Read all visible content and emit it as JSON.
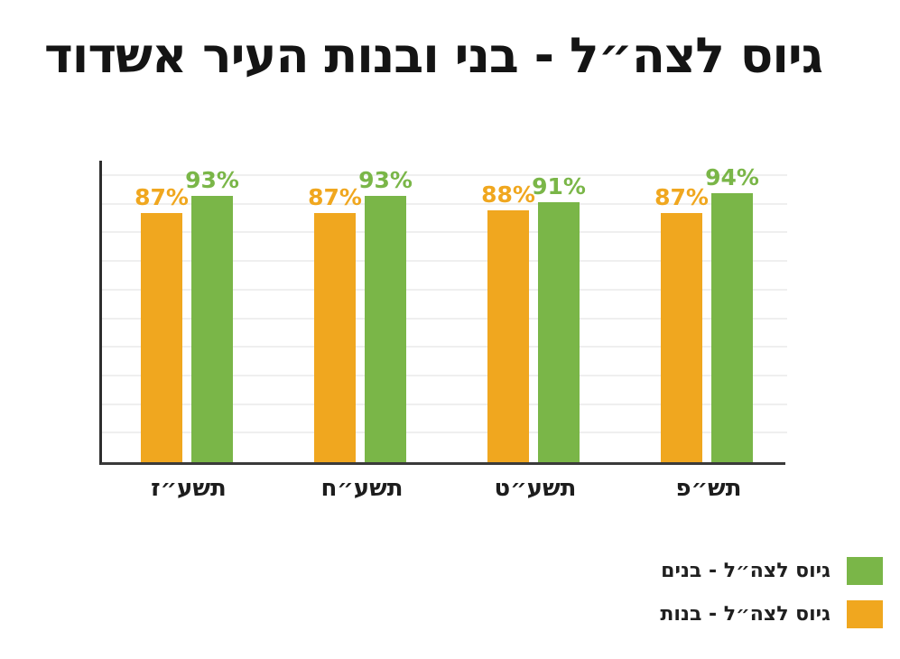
{
  "title": "גיוס לצה״ל - בני ובנות העיר אשדוד",
  "chart_data": {
    "type": "bar",
    "title": "גיוס לצה״ל - בני ובנות העיר אשדוד",
    "categories": [
      "תשע״ז",
      "תשע״ח",
      "תשע״ט",
      "תש״פ"
    ],
    "series": [
      {
        "name": "גיוס לצה״ל - בנים",
        "color": "#7ab648",
        "values": [
          93,
          93,
          91,
          94
        ]
      },
      {
        "name": "גיוס לצה״ל - בנות",
        "color": "#f0a71f",
        "values": [
          87,
          87,
          88,
          87
        ]
      }
    ],
    "value_label_suffix": "%",
    "ylim": [
      0,
      105
    ],
    "gridlines": {
      "every": 10,
      "color": "#efefef",
      "visible": true
    },
    "axis_color": "#333333",
    "legend_position": "bottom-right",
    "value_labels_visible": true
  }
}
